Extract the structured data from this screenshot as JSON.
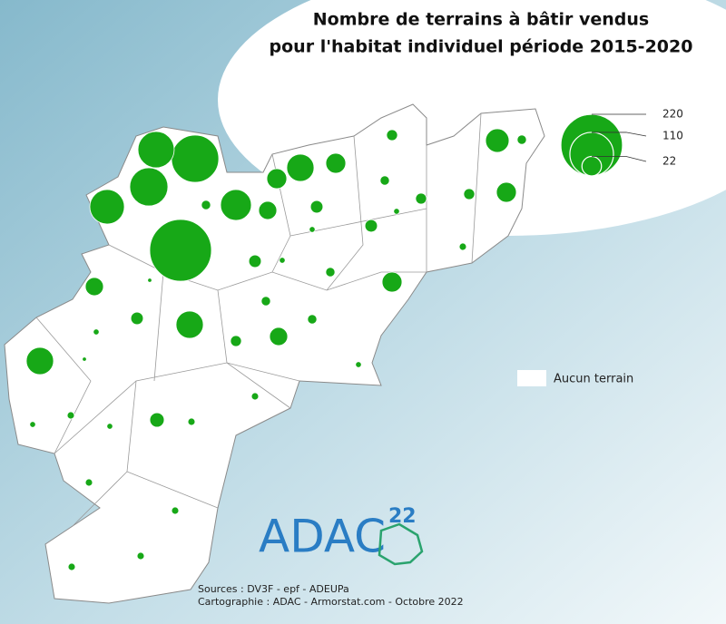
{
  "title": [
    "Nombre de terrains à bâtir vendus",
    "pour l'habitat individuel période 2015-2020"
  ],
  "legend": {
    "sizes": [
      220,
      110,
      22
    ],
    "no_data": "Aucun terrain"
  },
  "logo": {
    "text": "ADAC",
    "superscript": "22"
  },
  "sources": [
    "Sources : DV3F - epf - ADEUPa",
    "Cartographie : ADAC - Armorstat.com - Octobre 2022"
  ],
  "map": {
    "values": [
      220,
      129,
      76,
      84,
      69,
      55,
      43,
      32,
      43,
      43,
      23,
      23,
      19,
      23,
      23,
      19,
      19,
      12,
      9,
      9,
      9,
      7,
      9,
      7,
      7,
      7,
      5,
      5,
      5,
      5,
      5,
      5,
      3,
      3,
      3,
      3,
      3,
      3,
      3,
      3,
      2,
      2,
      2,
      2,
      2,
      2,
      2,
      1,
      1
    ]
  }
}
